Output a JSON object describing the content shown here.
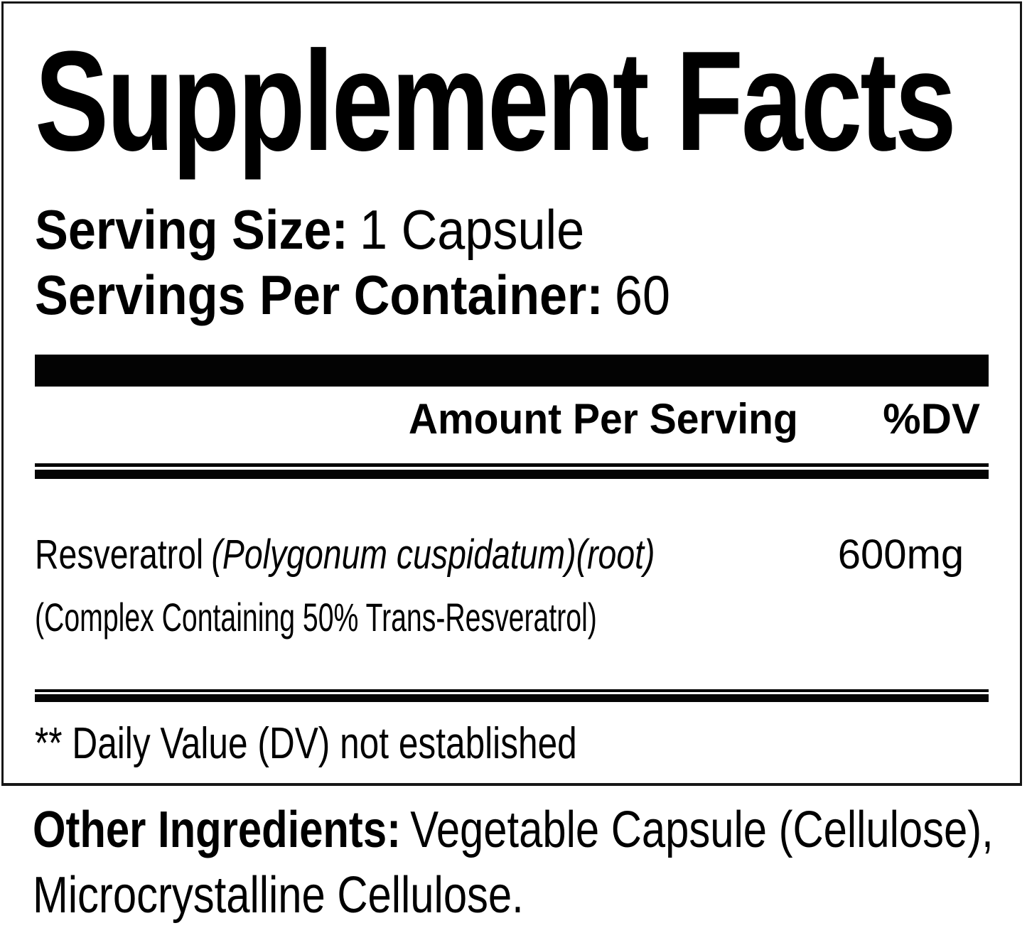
{
  "label": {
    "title": "Supplement Facts",
    "serving": {
      "size_label": "Serving Size:",
      "size_value": "1 Capsule",
      "per_container_label": "Servings Per Container:",
      "per_container_value": "60"
    },
    "header": {
      "amount_per_serving": "Amount Per Serving",
      "dv": "%DV"
    },
    "ingredients": [
      {
        "name": "Resveratrol",
        "botanical": "(Polygonum cuspidatum)(root)",
        "detail": "(Complex Containing 50% Trans-Resveratrol)",
        "amount": "600mg",
        "dv": "**"
      }
    ],
    "footnote": "** Daily Value (DV) not established",
    "other_ingredients": {
      "label": "Other Ingredients:",
      "line1": "Vegetable Capsule (Cellulose),",
      "line2": "Microcrystalline Cellulose."
    }
  },
  "colors": {
    "text": "#000000",
    "background": "#ffffff",
    "rule": "#050505"
  }
}
